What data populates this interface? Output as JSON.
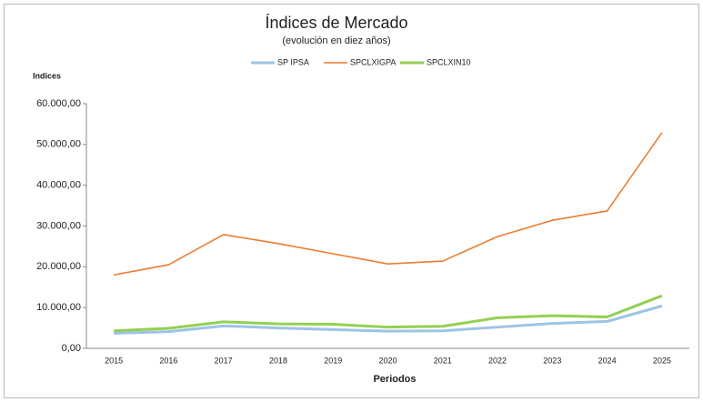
{
  "chart_data": {
    "type": "line",
    "title": "Índices de Mercado",
    "subtitle": "(evolución en diez años)",
    "y_label": "Indices",
    "x_label": "Periodos",
    "categories": [
      "2015",
      "2016",
      "2017",
      "2018",
      "2019",
      "2020",
      "2021",
      "2022",
      "2023",
      "2024",
      "2025"
    ],
    "series": [
      {
        "name": "SP IPSA",
        "color": "#9dc3e6",
        "values": [
          3700,
          4100,
          5500,
          5000,
          4600,
          4200,
          4300,
          5200,
          6100,
          6600,
          10400
        ]
      },
      {
        "name": "SPCLXIGPA",
        "color": "#ed7d31",
        "values": [
          18000,
          20500,
          27900,
          25700,
          23200,
          20700,
          21400,
          27400,
          31400,
          33700,
          52900
        ]
      },
      {
        "name": "SPCLXIN10",
        "color": "#92d050",
        "values": [
          4300,
          4900,
          6500,
          6000,
          5900,
          5200,
          5400,
          7500,
          8000,
          7700,
          12900
        ]
      }
    ],
    "ylim": [
      0,
      60000
    ],
    "yticks": [
      {
        "value": 0,
        "label": "0,00"
      },
      {
        "value": 10000,
        "label": "10.000,00"
      },
      {
        "value": 20000,
        "label": "20.000,00"
      },
      {
        "value": 30000,
        "label": "30.000,00"
      },
      {
        "value": 40000,
        "label": "40.000,00"
      },
      {
        "value": 50000,
        "label": "50.000,00"
      },
      {
        "value": 60000,
        "label": "60.000,00"
      }
    ],
    "legend": "top"
  }
}
